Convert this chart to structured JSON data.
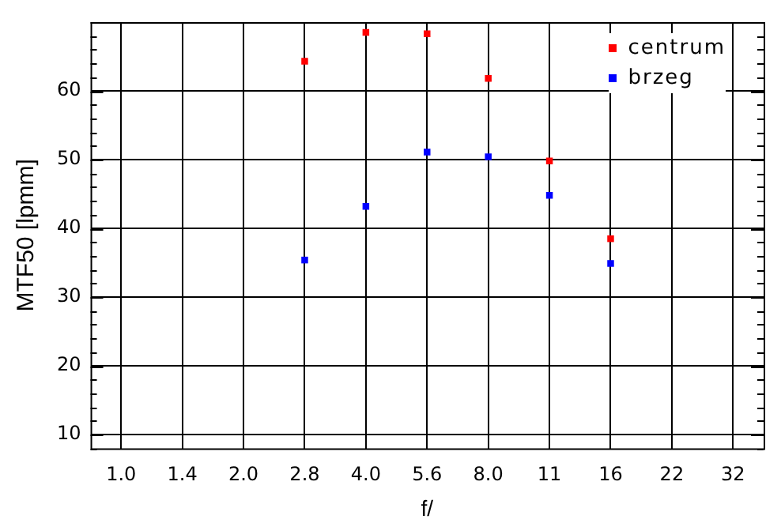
{
  "chart_data": {
    "type": "scatter",
    "xlabel": "f/",
    "ylabel": "MTF50 [lpmm]",
    "categories": [
      "1.0",
      "1.4",
      "2.0",
      "2.8",
      "4.0",
      "5.6",
      "8.0",
      "11",
      "16",
      "22",
      "32"
    ],
    "series": [
      {
        "name": "centrum",
        "color": "#ff0000",
        "values": [
          null,
          null,
          null,
          64.3,
          68.5,
          68.3,
          61.8,
          49.8,
          38.5,
          null,
          null
        ]
      },
      {
        "name": "brzeg",
        "color": "#0000ff",
        "values": [
          null,
          null,
          null,
          35.4,
          43.2,
          51.1,
          50.4,
          44.8,
          34.9,
          null,
          null
        ]
      }
    ],
    "ylim": [
      8,
      70
    ],
    "yticks": [
      10,
      20,
      30,
      40,
      50,
      60
    ],
    "grid": true,
    "legend": "top right",
    "marker": "square"
  }
}
